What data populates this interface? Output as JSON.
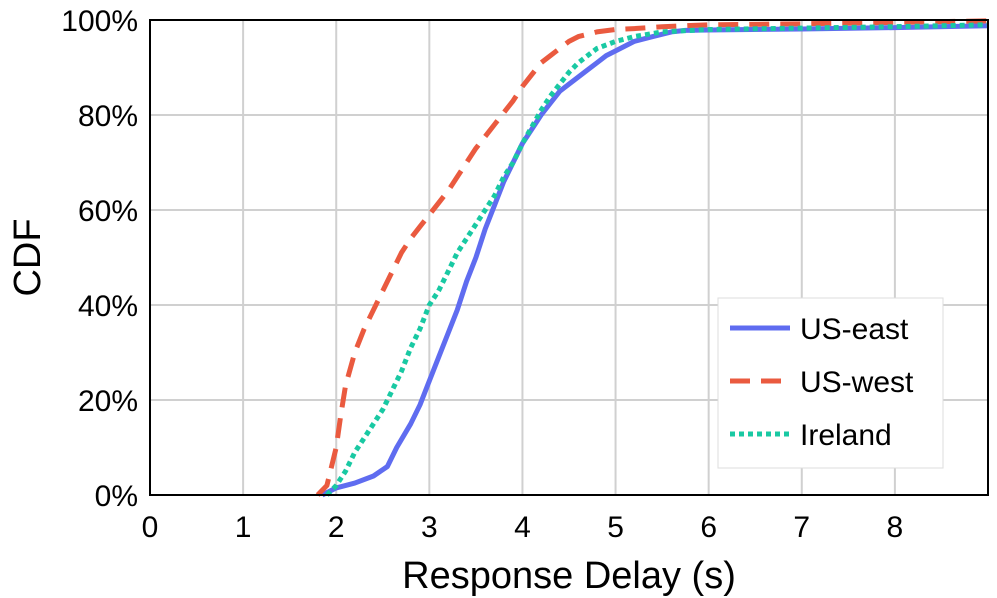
{
  "chart_data": {
    "type": "line",
    "xlabel": "Response Delay (s)",
    "ylabel": "CDF",
    "xlim": [
      0,
      9
    ],
    "ylim": [
      0,
      100
    ],
    "xticks": [
      0,
      1,
      2,
      3,
      4,
      5,
      6,
      7,
      8
    ],
    "xtick_labels": [
      "0",
      "1",
      "2",
      "3",
      "4",
      "5",
      "6",
      "7",
      "8"
    ],
    "yticks": [
      0,
      20,
      40,
      60,
      80,
      100
    ],
    "ytick_labels": [
      "0%",
      "20%",
      "40%",
      "60%",
      "80%",
      "100%"
    ],
    "grid": true,
    "legend_position": "lower-right",
    "series": [
      {
        "name": "US-east",
        "color": "#5f6cf0",
        "style": "solid",
        "x": [
          1.85,
          2.0,
          2.2,
          2.4,
          2.55,
          2.65,
          2.8,
          2.9,
          3.0,
          3.1,
          3.2,
          3.3,
          3.4,
          3.5,
          3.6,
          3.7,
          3.8,
          3.9,
          4.0,
          4.1,
          4.2,
          4.3,
          4.4,
          4.5,
          4.6,
          4.7,
          4.8,
          4.9,
          5.0,
          5.2,
          5.4,
          5.6,
          5.75,
          6.0,
          7.0,
          8.0,
          9.0
        ],
        "y": [
          0,
          1.5,
          2.5,
          4,
          6,
          10,
          15,
          19,
          24,
          29,
          34,
          39,
          45,
          50,
          56,
          61,
          66,
          70,
          74,
          77,
          80,
          82.5,
          85,
          86.5,
          88,
          89.5,
          91,
          92.5,
          93.5,
          95.5,
          96.5,
          97.5,
          97.8,
          97.9,
          98.1,
          98.4,
          98.8
        ]
      },
      {
        "name": "US-west",
        "color": "#ea5a3f",
        "style": "dashed",
        "x": [
          1.8,
          1.9,
          2.0,
          2.05,
          2.1,
          2.2,
          2.3,
          2.4,
          2.5,
          2.6,
          2.7,
          2.8,
          2.9,
          3.0,
          3.1,
          3.2,
          3.3,
          3.4,
          3.5,
          3.6,
          3.7,
          3.8,
          3.9,
          4.0,
          4.1,
          4.2,
          4.3,
          4.4,
          4.5,
          4.6,
          4.7,
          4.8,
          5.0,
          5.2,
          5.5,
          6.0,
          7.0,
          8.0,
          9.0
        ],
        "y": [
          0,
          2,
          10,
          17,
          23,
          30,
          35,
          39,
          43,
          47,
          51,
          54,
          56.5,
          59,
          61.5,
          64,
          67,
          70,
          73,
          75.5,
          78,
          80.5,
          83,
          86,
          88.5,
          91,
          92.5,
          94,
          95.5,
          96.5,
          97,
          97.5,
          98,
          98.2,
          98.6,
          99,
          99.2,
          99.5,
          99.8
        ]
      },
      {
        "name": "Ireland",
        "color": "#19c9a3",
        "style": "dotted",
        "x": [
          1.9,
          2.0,
          2.1,
          2.2,
          2.3,
          2.4,
          2.5,
          2.6,
          2.7,
          2.8,
          2.9,
          3.0,
          3.1,
          3.2,
          3.3,
          3.4,
          3.5,
          3.6,
          3.7,
          3.8,
          3.9,
          4.0,
          4.1,
          4.2,
          4.3,
          4.4,
          4.5,
          4.6,
          4.7,
          4.8,
          5.0,
          5.2,
          5.5,
          6.0,
          7.0,
          8.0,
          9.0
        ],
        "y": [
          0,
          2,
          5,
          9,
          12,
          15,
          18,
          22,
          26,
          31,
          35,
          40,
          43,
          47,
          51,
          54,
          57,
          60,
          63,
          67,
          70,
          74,
          77.5,
          81,
          84,
          86.5,
          89,
          91,
          92.5,
          94,
          95.5,
          96.5,
          97.5,
          98,
          98.3,
          98.6,
          99
        ]
      }
    ]
  }
}
